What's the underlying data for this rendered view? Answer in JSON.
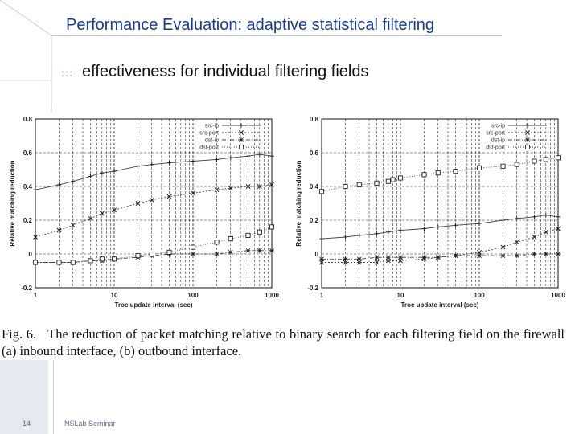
{
  "slide": {
    "title": "Performance Evaluation: adaptive statistical filtering",
    "bullet_icon": ":::",
    "subtitle": "effectiveness for individual filtering fields",
    "page_number": "14",
    "footer": "NSLab Seminar"
  },
  "caption": {
    "label": "Fig. 6.",
    "text": "The reduction of packet matching relative to binary search for each filtering field on the firewall (a) inbound interface, (b) outbound interface."
  },
  "colors": {
    "title": "#1a3e8c",
    "grid": "#222222",
    "series_line": "#444444"
  },
  "chart_data": [
    {
      "type": "line",
      "panel": "(a) inbound interface",
      "xlabel": "Troc update interval (sec)",
      "ylabel": "Relative matching reduction",
      "xscale": "log",
      "xlim": [
        1,
        1000
      ],
      "ylim": [
        -0.2,
        0.8
      ],
      "xticks": [
        "1",
        "10",
        "100",
        "1000"
      ],
      "yticks": [
        "-0.2",
        "0",
        "0.2",
        "0.4",
        "0.6",
        "0.8"
      ],
      "legend_position": "top-right",
      "series": [
        {
          "name": "src-ip",
          "marker": "plus",
          "x": [
            1,
            2,
            3,
            5,
            7,
            10,
            20,
            30,
            50,
            100,
            200,
            300,
            500,
            700,
            1000
          ],
          "y": [
            0.38,
            0.41,
            0.43,
            0.46,
            0.48,
            0.49,
            0.52,
            0.53,
            0.54,
            0.55,
            0.56,
            0.57,
            0.58,
            0.59,
            0.58
          ]
        },
        {
          "name": "src-port",
          "marker": "x",
          "x": [
            1,
            2,
            3,
            5,
            7,
            10,
            20,
            30,
            50,
            100,
            200,
            300,
            500,
            700,
            1000
          ],
          "y": [
            0.1,
            0.14,
            0.17,
            0.21,
            0.24,
            0.26,
            0.3,
            0.32,
            0.34,
            0.36,
            0.38,
            0.39,
            0.4,
            0.4,
            0.41
          ]
        },
        {
          "name": "dst-ip",
          "marker": "star",
          "x": [
            1,
            2,
            3,
            5,
            7,
            10,
            20,
            30,
            50,
            100,
            200,
            300,
            500,
            700,
            1000
          ],
          "y": [
            -0.05,
            -0.05,
            -0.05,
            -0.04,
            -0.04,
            -0.03,
            -0.02,
            -0.01,
            0.0,
            0.0,
            0.0,
            0.01,
            0.02,
            0.02,
            0.02
          ]
        },
        {
          "name": "dst-port",
          "marker": "square",
          "x": [
            1,
            2,
            3,
            5,
            7,
            10,
            20,
            30,
            50,
            100,
            200,
            300,
            500,
            700,
            1000
          ],
          "y": [
            -0.05,
            -0.05,
            -0.05,
            -0.04,
            -0.03,
            -0.03,
            -0.01,
            0.0,
            0.01,
            0.04,
            0.07,
            0.09,
            0.11,
            0.13,
            0.16
          ]
        }
      ]
    },
    {
      "type": "line",
      "panel": "(b) outbound interface",
      "xlabel": "Troc update interval (sec)",
      "ylabel": "Relative matching reduction",
      "xscale": "log",
      "xlim": [
        1,
        1000
      ],
      "ylim": [
        -0.2,
        0.8
      ],
      "xticks": [
        "1",
        "10",
        "100",
        "1000"
      ],
      "yticks": [
        "-0.2",
        "0",
        "0.2",
        "0.4",
        "0.6",
        "0.8"
      ],
      "legend_position": "top-right",
      "series": [
        {
          "name": "src-ip",
          "marker": "plus",
          "x": [
            1,
            2,
            3,
            5,
            7,
            10,
            20,
            30,
            50,
            100,
            200,
            300,
            500,
            700,
            1000
          ],
          "y": [
            0.09,
            0.1,
            0.11,
            0.12,
            0.13,
            0.14,
            0.15,
            0.16,
            0.17,
            0.18,
            0.2,
            0.21,
            0.22,
            0.23,
            0.22
          ]
        },
        {
          "name": "src-port",
          "marker": "x",
          "x": [
            1,
            2,
            3,
            5,
            7,
            10,
            20,
            30,
            50,
            100,
            200,
            300,
            500,
            700,
            1000
          ],
          "y": [
            -0.05,
            -0.05,
            -0.05,
            -0.05,
            -0.04,
            -0.04,
            -0.03,
            -0.02,
            -0.01,
            0.01,
            0.04,
            0.07,
            0.1,
            0.13,
            0.15
          ]
        },
        {
          "name": "dst-ip",
          "marker": "star",
          "x": [
            1,
            2,
            3,
            5,
            7,
            10,
            20,
            30,
            50,
            100,
            200,
            300,
            500,
            700,
            1000
          ],
          "y": [
            -0.03,
            -0.03,
            -0.03,
            -0.02,
            -0.02,
            -0.02,
            -0.02,
            -0.02,
            -0.01,
            -0.01,
            -0.01,
            -0.01,
            0.0,
            0.0,
            0.0
          ]
        },
        {
          "name": "dst-port",
          "marker": "square",
          "x": [
            1,
            2,
            3,
            5,
            7,
            8,
            10,
            20,
            30,
            50,
            100,
            200,
            300,
            500,
            700,
            1000
          ],
          "y": [
            0.37,
            0.4,
            0.41,
            0.42,
            0.43,
            0.44,
            0.45,
            0.47,
            0.48,
            0.49,
            0.51,
            0.52,
            0.53,
            0.55,
            0.56,
            0.57
          ]
        }
      ]
    }
  ]
}
